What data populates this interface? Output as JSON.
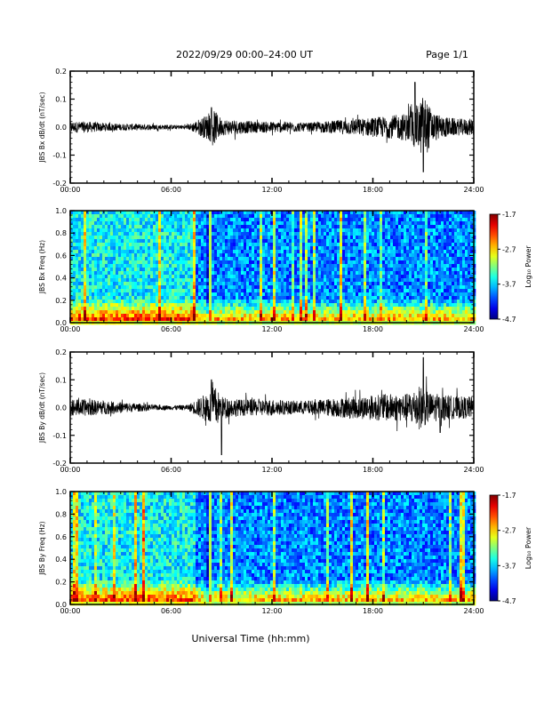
{
  "header": {
    "date_range": "2022/09/29  00:00–24:00 UT",
    "page": "Page 1/1"
  },
  "x_axis": {
    "label": "Universal Time (hh:mm)",
    "ticks": [
      "00:00",
      "06:00",
      "12:00",
      "18:00",
      "24:00"
    ],
    "range_hours": [
      0,
      24
    ]
  },
  "chart_data": [
    {
      "id": "bx-timeseries",
      "type": "line",
      "ylabel": "JBS Bx dB/dt (nT/sec)",
      "ylim": [
        -0.2,
        0.2
      ],
      "yticks": [
        "0.2",
        "0.1",
        "0.0",
        "-0.1",
        "-0.2"
      ],
      "envelope": {
        "hours": [
          0,
          1,
          2,
          3,
          4,
          5,
          6,
          7,
          8.3,
          8.6,
          9,
          10,
          11,
          12,
          13,
          14,
          15,
          16,
          17,
          18,
          19,
          20,
          20.8,
          21,
          21.5,
          22,
          23,
          24
        ],
        "amplitude": [
          0.02,
          0.02,
          0.015,
          0.012,
          0.012,
          0.01,
          0.008,
          0.008,
          0.05,
          0.06,
          0.03,
          0.025,
          0.02,
          0.02,
          0.02,
          0.015,
          0.02,
          0.025,
          0.03,
          0.035,
          0.04,
          0.05,
          0.09,
          0.12,
          0.06,
          0.04,
          0.03,
          0.03
        ]
      },
      "peaks": [
        {
          "hour": 8.4,
          "value": 0.07
        },
        {
          "hour": 20.5,
          "value": 0.16
        },
        {
          "hour": 21.0,
          "value": 0.14
        },
        {
          "hour": 21.0,
          "value": -0.16
        }
      ]
    },
    {
      "id": "bx-spectrogram",
      "type": "heatmap",
      "ylabel": "JBS Bx Freq (Hz)",
      "ylim": [
        0.0,
        1.0
      ],
      "yticks": [
        "1.0",
        "0.8",
        "0.6",
        "0.4",
        "0.2",
        "0.0"
      ],
      "colorbar": {
        "label": "Log₁₀ Power",
        "range": [
          -4.7,
          -1.7
        ],
        "ticks": [
          "-1.7",
          "-2.7",
          "-3.7",
          "-4.7"
        ]
      },
      "quiet_after_hour": 8.0
    },
    {
      "id": "by-timeseries",
      "type": "line",
      "ylabel": "JBS By dB/dt (nT/sec)",
      "ylim": [
        -0.2,
        0.2
      ],
      "yticks": [
        "0.2",
        "0.1",
        "0.0",
        "-0.1",
        "-0.2"
      ],
      "envelope": {
        "hours": [
          0,
          1,
          2,
          3,
          4,
          5,
          6,
          7,
          8.3,
          8.6,
          9,
          10,
          11,
          12,
          13,
          14,
          15,
          16,
          17,
          18,
          19,
          20,
          20.8,
          21,
          21.5,
          22,
          23,
          24
        ],
        "amplitude": [
          0.03,
          0.03,
          0.025,
          0.02,
          0.015,
          0.01,
          0.008,
          0.01,
          0.06,
          0.08,
          0.04,
          0.03,
          0.03,
          0.03,
          0.025,
          0.025,
          0.03,
          0.035,
          0.04,
          0.045,
          0.05,
          0.05,
          0.08,
          0.07,
          0.05,
          0.05,
          0.04,
          0.04
        ]
      },
      "peaks": [
        {
          "hour": 8.4,
          "value": 0.1
        },
        {
          "hour": 9.0,
          "value": -0.17
        },
        {
          "hour": 21.0,
          "value": 0.18
        },
        {
          "hour": 22.0,
          "value": -0.09
        }
      ]
    },
    {
      "id": "by-spectrogram",
      "type": "heatmap",
      "ylabel": "JBS By Freq (Hz)",
      "ylim": [
        0.0,
        1.0
      ],
      "yticks": [
        "1.0",
        "0.8",
        "0.6",
        "0.4",
        "0.2",
        "0.0"
      ],
      "colorbar": {
        "label": "Log₁₀ Power",
        "range": [
          -4.7,
          -1.7
        ],
        "ticks": [
          "-1.7",
          "-2.7",
          "-3.7",
          "-4.7"
        ]
      },
      "quiet_after_hour": 8.0
    }
  ]
}
